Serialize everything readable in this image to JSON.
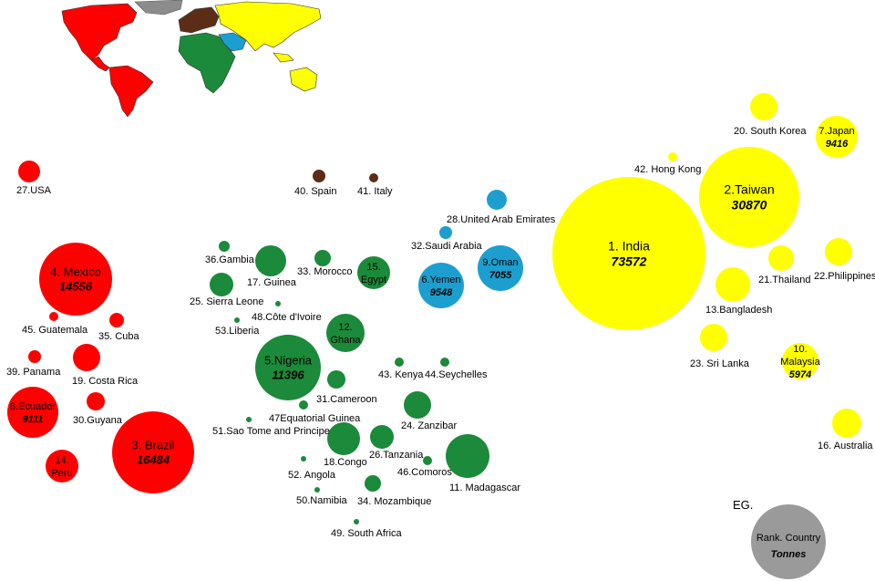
{
  "colors": {
    "americas": "#ff0000",
    "europe": "#5c2d16",
    "africa": "#1b8a3a",
    "middle_east": "#1c9fcf",
    "asia_pacific": "#ffff00",
    "legend": "#9a9a9a"
  },
  "regions": [
    "americas",
    "europe",
    "africa",
    "middle_east",
    "asia_pacific"
  ],
  "countries": [
    {
      "rank": 1,
      "label": "1. India",
      "tonnes": "73572",
      "region": "asia_pacific"
    },
    {
      "rank": 2,
      "label": "2.Taiwan",
      "tonnes": "30870",
      "region": "asia_pacific"
    },
    {
      "rank": 3,
      "label": "3. Brazil",
      "tonnes": "16484",
      "region": "americas"
    },
    {
      "rank": 4,
      "label": "4. Mexico",
      "tonnes": "14556",
      "region": "americas"
    },
    {
      "rank": 5,
      "label": "5.Nigeria",
      "tonnes": "11396",
      "region": "africa"
    },
    {
      "rank": 6,
      "label": "6.Yemen",
      "tonnes": "9548",
      "region": "middle_east"
    },
    {
      "rank": 7,
      "label": "7.Japan",
      "tonnes": "9416",
      "region": "asia_pacific"
    },
    {
      "rank": 8,
      "label": "8.Ecuador",
      "tonnes": "9111",
      "region": "americas"
    },
    {
      "rank": 9,
      "label": "9.Oman",
      "tonnes": "7055",
      "region": "middle_east"
    },
    {
      "rank": 10,
      "label": "10.",
      "label2": "Malaysia",
      "tonnes": "5974",
      "region": "asia_pacific"
    },
    {
      "rank": 11,
      "label": "11. Madagascar",
      "region": "africa"
    },
    {
      "rank": 12,
      "label": "12.",
      "label2": "Ghana",
      "region": "africa"
    },
    {
      "rank": 13,
      "label": "13.Bangladesh",
      "region": "asia_pacific"
    },
    {
      "rank": 14,
      "label": "14.",
      "label2": "Peru",
      "region": "americas"
    },
    {
      "rank": 15,
      "label": "15.",
      "label2": "Egypt",
      "region": "africa"
    },
    {
      "rank": 16,
      "label": "16. Australia",
      "region": "asia_pacific"
    },
    {
      "rank": 17,
      "label": "17. Guinea",
      "region": "africa"
    },
    {
      "rank": 18,
      "label": "18.Congo",
      "region": "africa"
    },
    {
      "rank": 19,
      "label": "19. Costa Rica",
      "region": "americas"
    },
    {
      "rank": 20,
      "label": "20. South Korea",
      "region": "asia_pacific"
    },
    {
      "rank": 21,
      "label": "21.Thailand",
      "region": "asia_pacific"
    },
    {
      "rank": 22,
      "label": "22.Philippines",
      "region": "asia_pacific"
    },
    {
      "rank": 23,
      "label": "23. Sri Lanka",
      "region": "asia_pacific"
    },
    {
      "rank": 24,
      "label": "24. Zanzibar",
      "region": "africa"
    },
    {
      "rank": 25,
      "label": "25. Sierra Leone",
      "region": "africa"
    },
    {
      "rank": 26,
      "label": "26.Tanzania",
      "region": "africa"
    },
    {
      "rank": 27,
      "label": "27.USA",
      "region": "americas"
    },
    {
      "rank": 28,
      "label": "28.United Arab Emirates",
      "region": "middle_east"
    },
    {
      "rank": 30,
      "label": "30.Guyana",
      "region": "americas"
    },
    {
      "rank": 31,
      "label": "31.Cameroon",
      "region": "africa"
    },
    {
      "rank": 32,
      "label": "32.Saudi Arabia",
      "region": "middle_east"
    },
    {
      "rank": 33,
      "label": "33. Morocco",
      "region": "africa"
    },
    {
      "rank": 34,
      "label": "34. Mozambique",
      "region": "africa"
    },
    {
      "rank": 35,
      "label": "35. Cuba",
      "region": "americas"
    },
    {
      "rank": 36,
      "label": "36.Gambia",
      "region": "africa"
    },
    {
      "rank": 39,
      "label": "39. Panama",
      "region": "americas"
    },
    {
      "rank": 40,
      "label": "40. Spain",
      "region": "europe"
    },
    {
      "rank": 41,
      "label": "41. Italy",
      "region": "europe"
    },
    {
      "rank": 42,
      "label": "42. Hong Kong",
      "region": "asia_pacific"
    },
    {
      "rank": 43,
      "label": "43. Kenya",
      "region": "africa"
    },
    {
      "rank": 44,
      "label": "44.Seychelles",
      "region": "africa"
    },
    {
      "rank": 45,
      "label": "45. Guatemala",
      "region": "americas"
    },
    {
      "rank": 46,
      "label": "46.Comoros",
      "region": "africa"
    },
    {
      "rank": 47,
      "label": "47Equatorial Guinea",
      "region": "africa"
    },
    {
      "rank": 48,
      "label": "48.Côte d'Ivoire",
      "region": "africa"
    },
    {
      "rank": 49,
      "label": "49. South Africa",
      "region": "africa"
    },
    {
      "rank": 50,
      "label": "50.Namibia",
      "region": "africa"
    },
    {
      "rank": 51,
      "label": "51.Sao Tome and Principe",
      "region": "africa"
    },
    {
      "rank": 52,
      "label": "52. Angola",
      "region": "africa"
    },
    {
      "rank": 53,
      "label": "53.Liberia",
      "region": "africa"
    }
  ],
  "legend": {
    "title": "EG.",
    "line1": "Rank. Country",
    "line2": "Tonnes"
  }
}
